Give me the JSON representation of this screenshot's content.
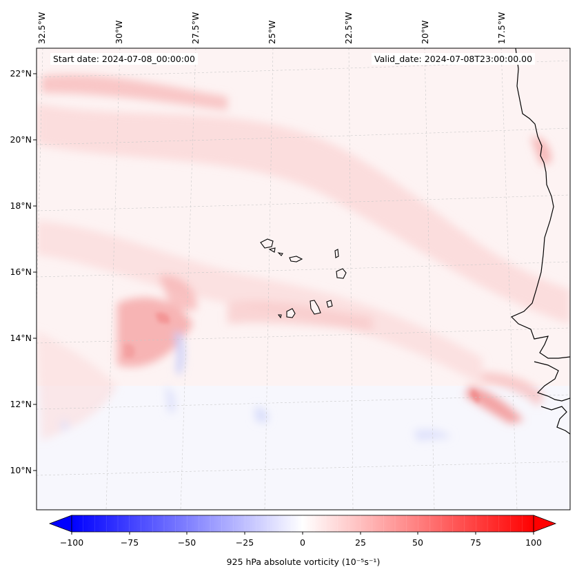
{
  "annotations": {
    "start_date": "Start date: 2024-07-08_00:00:00",
    "valid_date": "Valid_date: 2024-07-08T23:00:00.00"
  },
  "lon_labels": [
    "32.5°W",
    "30°W",
    "27.5°W",
    "25°W",
    "22.5°W",
    "20°W",
    "17.5°W"
  ],
  "lat_labels": [
    "22°N",
    "20°N",
    "18°N",
    "16°N",
    "14°N",
    "12°N",
    "10°N"
  ],
  "colorbar": {
    "title": "925 hPa absolute vorticity (10⁻⁵s⁻¹)",
    "ticks": [
      "−100",
      "−75",
      "−50",
      "−25",
      "0",
      "25",
      "50",
      "75",
      "100"
    ],
    "min": -100,
    "max": 100,
    "extend": "both",
    "low_color": "#0000ff",
    "mid_color": "#ffffff",
    "high_color": "#ff0000"
  },
  "colors": {
    "coastline": "#000000",
    "gridline": "#c8c8c8",
    "background_tint": "#fff4f4"
  }
}
